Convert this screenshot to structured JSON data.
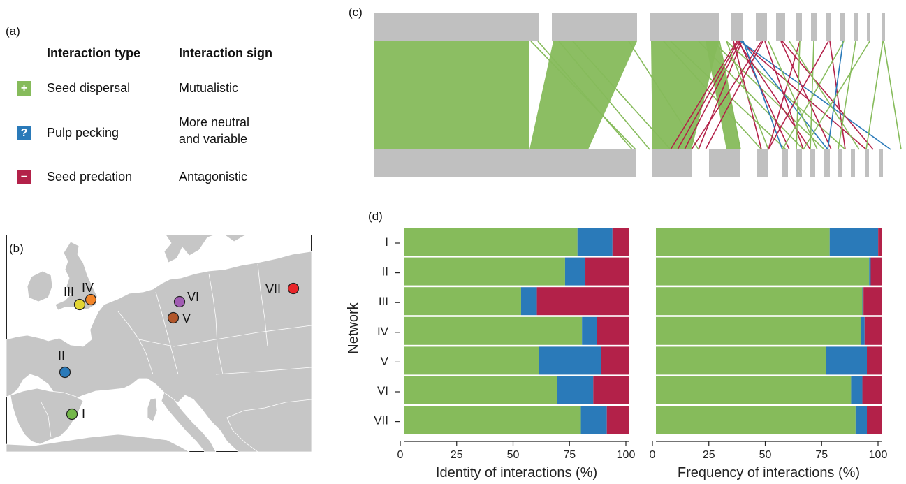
{
  "colors": {
    "mutualistic": "#86bb5b",
    "neutral": "#2a7ab9",
    "antagonistic": "#b32149",
    "node": "#c0c0c0",
    "land": "#c6c6c6",
    "sea": "#ffffff"
  },
  "panel_a": {
    "label": "(a)",
    "col1": "Interaction type",
    "col2": "Interaction sign",
    "rows": [
      {
        "symbol": "+",
        "type": "Seed dispersal",
        "sign1": "Mutualistic",
        "sign2": "",
        "color": "#86bb5b"
      },
      {
        "symbol": "?",
        "type": "Pulp pecking",
        "sign1": "More neutral",
        "sign2": "and variable",
        "color": "#2a7ab9"
      },
      {
        "symbol": "−",
        "type": "Seed predation",
        "sign1": "Antagonistic",
        "sign2": "",
        "color": "#b32149"
      }
    ]
  },
  "panel_b": {
    "label": "(b)",
    "sites": [
      {
        "name": "I",
        "color": "#74b84a"
      },
      {
        "name": "II",
        "color": "#2a7ab9"
      },
      {
        "name": "III",
        "color": "#e3d533"
      },
      {
        "name": "IV",
        "color": "#f28428"
      },
      {
        "name": "V",
        "color": "#b2562a"
      },
      {
        "name": "VI",
        "color": "#a15db3"
      },
      {
        "name": "VII",
        "color": "#e8262a"
      }
    ]
  },
  "panel_c": {
    "label": "(c)"
  },
  "panel_d": {
    "label": "(d)"
  },
  "chart_data": [
    {
      "type": "bar",
      "orientation": "horizontal",
      "stacked": true,
      "categories": [
        "I",
        "II",
        "III",
        "IV",
        "V",
        "VI",
        "VII"
      ],
      "ylabel": "Network",
      "xlabel": "Identity of interactions (%)",
      "xlim": [
        0,
        100
      ],
      "xticks": [
        "0",
        "25",
        "50",
        "75",
        "100"
      ],
      "series": [
        {
          "values": [
            77,
            71.5,
            52,
            79,
            60,
            68,
            78.5
          ]
        },
        {
          "values": [
            15.5,
            9,
            7,
            6.5,
            27.5,
            16,
            11.5
          ]
        },
        {
          "values": [
            7.5,
            19.5,
            41,
            14.5,
            12.5,
            16,
            10
          ]
        }
      ]
    },
    {
      "type": "bar",
      "orientation": "horizontal",
      "stacked": true,
      "categories": [
        "I",
        "II",
        "III",
        "IV",
        "V",
        "VI",
        "VII"
      ],
      "xlabel": "Frequency of interactions (%)",
      "xlim": [
        0,
        100
      ],
      "xticks": [
        "0",
        "25",
        "50",
        "75",
        "100"
      ],
      "series": [
        {
          "values": [
            77,
            94.5,
            91.5,
            91,
            75.5,
            86.5,
            88.5
          ]
        },
        {
          "values": [
            21.5,
            0.7,
            0.5,
            1.5,
            18,
            5,
            5
          ]
        },
        {
          "values": [
            1.5,
            4.8,
            8,
            7.5,
            6.5,
            8.5,
            6.5
          ]
        }
      ]
    }
  ]
}
